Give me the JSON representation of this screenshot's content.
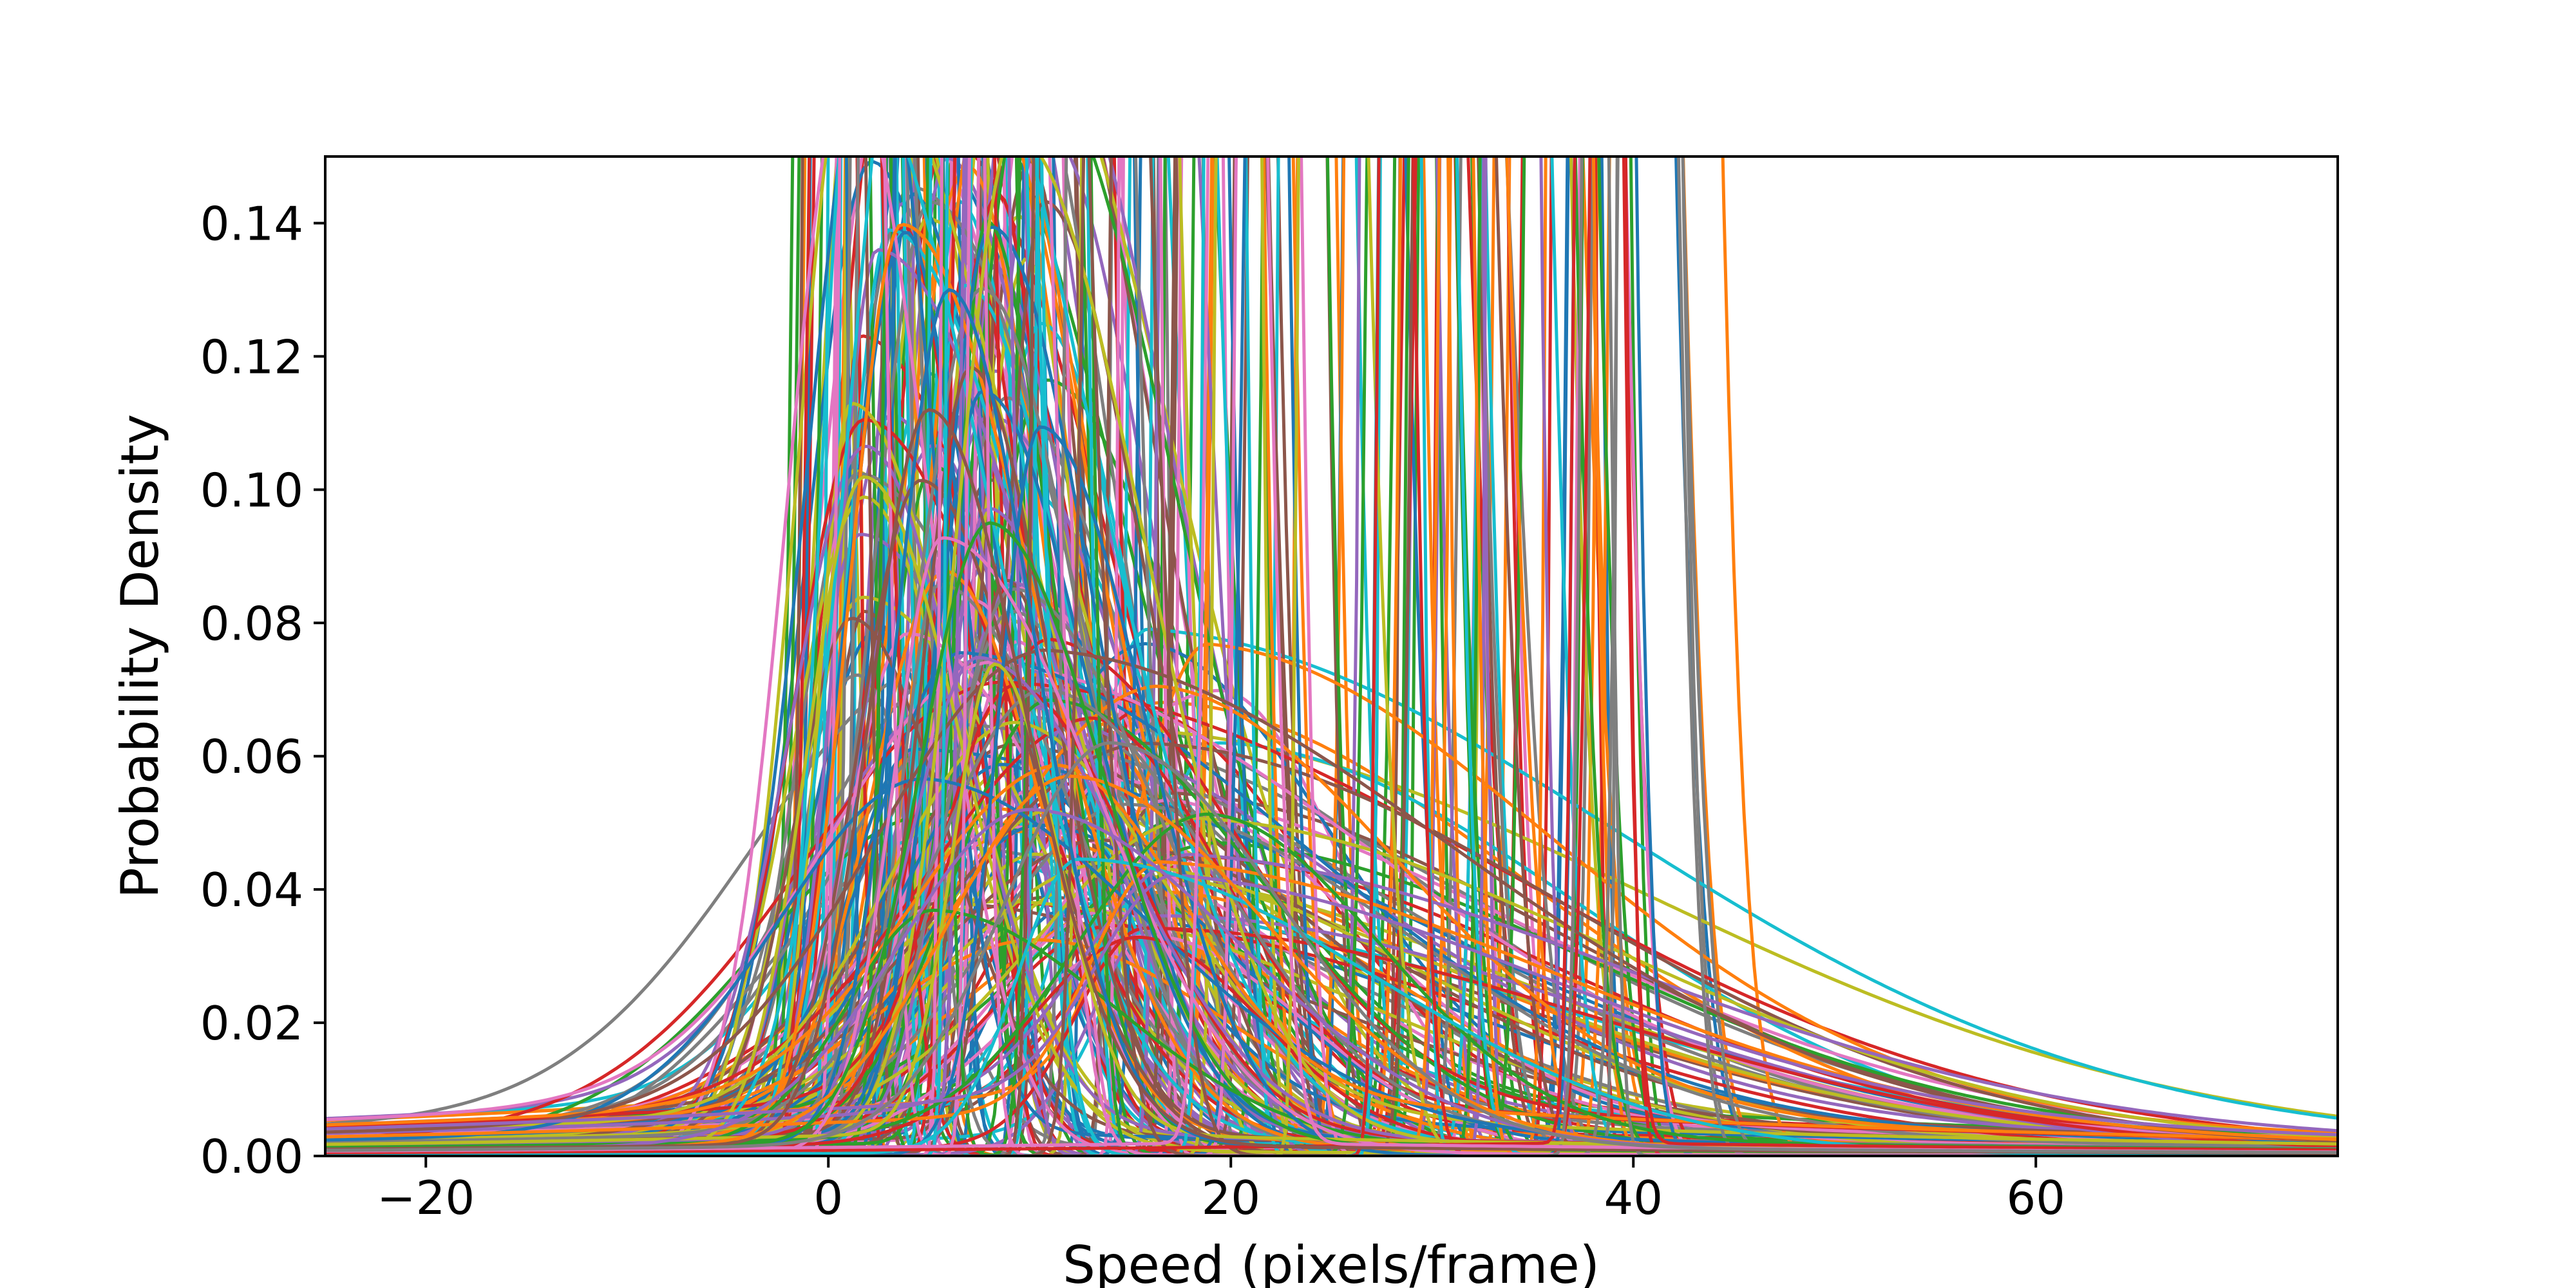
{
  "chart_data": {
    "type": "line",
    "title": "",
    "xlabel": "Speed (pixels/frame)",
    "ylabel": "Probability Density",
    "xlim": [
      -25,
      75
    ],
    "ylim": [
      0,
      0.15
    ],
    "xticks": [
      -20,
      0,
      20,
      40,
      60
    ],
    "xtick_labels": [
      "−20",
      "0",
      "20",
      "40",
      "60"
    ],
    "yticks": [
      0.0,
      0.02,
      0.04,
      0.06,
      0.08,
      0.1,
      0.12,
      0.14
    ],
    "ytick_labels": [
      "0.00",
      "0.02",
      "0.04",
      "0.06",
      "0.08",
      "0.10",
      "0.12",
      "0.14"
    ],
    "grid": false,
    "legend": "none",
    "colors": [
      "#1f77b4",
      "#ff7f0e",
      "#2ca02c",
      "#d62728",
      "#9467bd",
      "#8c564b",
      "#e377c2",
      "#7f7f7f",
      "#bcbd22",
      "#17becf"
    ],
    "series_note_count": 300,
    "series": [
      {
        "peak_x": 6,
        "peak_y": 0.128,
        "spread": 3.2
      },
      {
        "peak_x": 12,
        "peak_y": 0.055,
        "spread": 7.5
      },
      {
        "peak_x": 8,
        "peak_y": 0.093,
        "spread": 4.3
      },
      {
        "peak_x": 38,
        "peak_y": 0.6,
        "spread": 0.7
      },
      {
        "peak_x": 10,
        "peak_y": 0.05,
        "spread": 8.0
      },
      {
        "peak_x": 5,
        "peak_y": 0.11,
        "spread": 3.6
      },
      {
        "peak_x": 20,
        "peak_y": 0.4,
        "spread": 1.0
      },
      {
        "peak_x": 14,
        "peak_y": 0.06,
        "spread": 6.5
      }
    ]
  }
}
